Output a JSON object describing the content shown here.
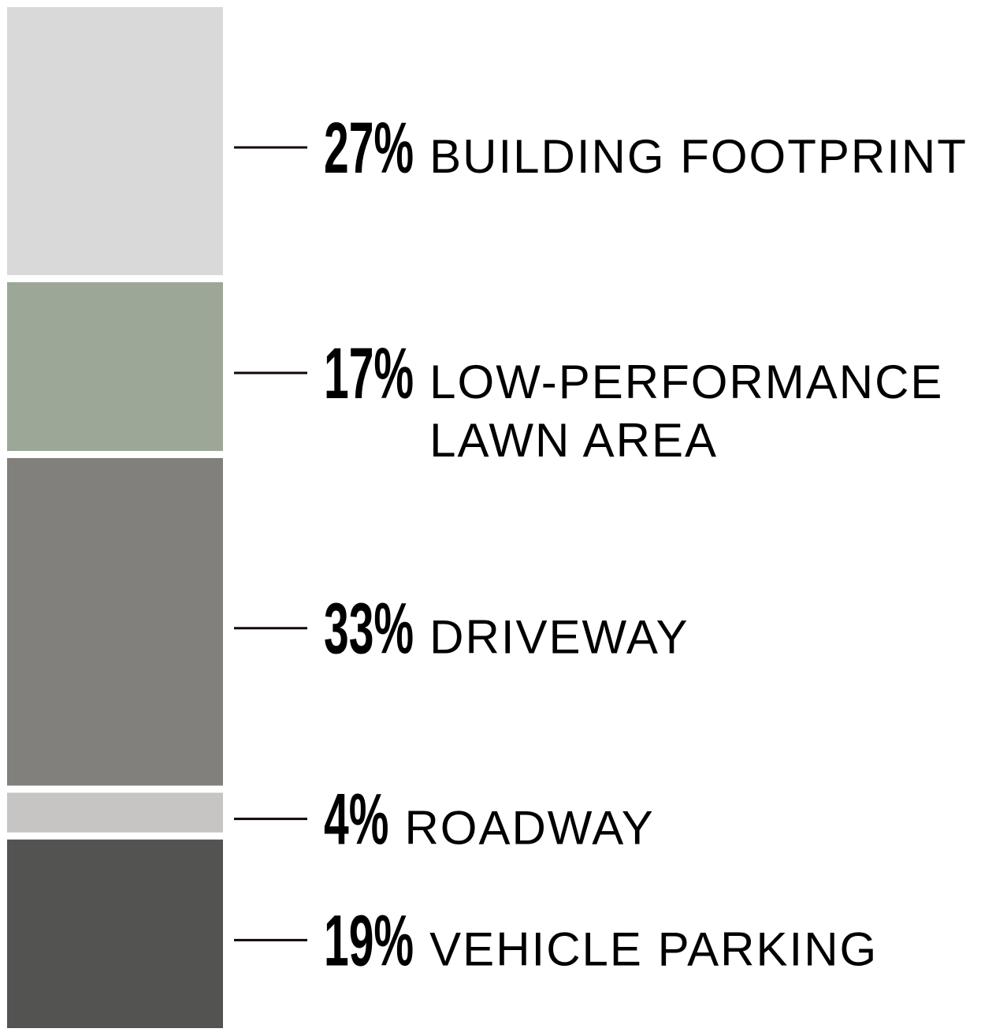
{
  "chart_data": {
    "type": "bar",
    "orientation": "stacked-vertical",
    "title": "",
    "unit": "%",
    "legend": "right",
    "grid": false,
    "segments": [
      {
        "value": 27,
        "percent_label": "27%",
        "label_lines": [
          "BUILDING FOOTPRINT"
        ],
        "color": "#d9d9d9"
      },
      {
        "value": 17,
        "percent_label": "17%",
        "label_lines": [
          "LOW-PERFORMANCE",
          "LAWN AREA"
        ],
        "color": "#9da798"
      },
      {
        "value": 33,
        "percent_label": "33%",
        "label_lines": [
          "DRIVEWAY"
        ],
        "color": "#82807c"
      },
      {
        "value": 4,
        "percent_label": "4%",
        "label_lines": [
          "ROADWAY"
        ],
        "color": "#c6c5c3"
      },
      {
        "value": 19,
        "percent_label": "19%",
        "label_lines": [
          "VEHICLE PARKING"
        ],
        "color": "#535351"
      }
    ]
  }
}
